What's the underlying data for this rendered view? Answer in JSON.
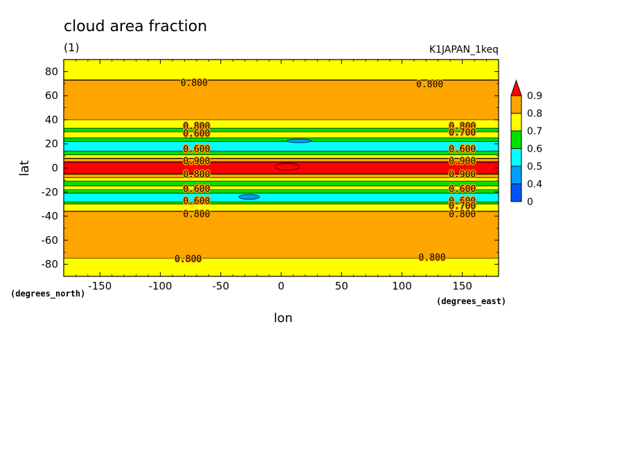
{
  "chart_data": {
    "type": "heatmap",
    "title": "cloud area fraction",
    "subtitle": "(1)",
    "experiment": "K1JAPAN_1keq",
    "xlabel": "lon",
    "ylabel": "lat",
    "xunits": "(degrees_east)",
    "yunits": "(degrees_north)",
    "xlim": [
      -180,
      180
    ],
    "ylim": [
      -90,
      90
    ],
    "xticks": [
      -150,
      -100,
      -50,
      0,
      50,
      100,
      150
    ],
    "yticks": [
      -80,
      -60,
      -40,
      -20,
      0,
      20,
      40,
      60,
      80
    ],
    "colorbar": {
      "levels": [
        "0",
        "0.4",
        "0.5",
        "0.6",
        "0.7",
        "0.8",
        "0.9"
      ],
      "bins": [
        {
          "label": "0-0.4",
          "color": "#0055ff"
        },
        {
          "label": "0.4-0.5",
          "color": "#00a0ff"
        },
        {
          "label": "0.5-0.6",
          "color": "#00ffff"
        },
        {
          "label": "0.6-0.7",
          "color": "#00e000"
        },
        {
          "label": "0.7-0.8",
          "color": "#ffff00"
        },
        {
          "label": "0.8-0.9",
          "color": "#ffa500"
        },
        {
          "label": ">0.9",
          "color": "#ff0000"
        }
      ]
    },
    "bands": [
      {
        "lat_min": 73,
        "lat_max": 90,
        "value": 0.75
      },
      {
        "lat_min": 40,
        "lat_max": 73,
        "value": 0.85
      },
      {
        "lat_min": 33,
        "lat_max": 40,
        "value": 0.75
      },
      {
        "lat_min": 30,
        "lat_max": 33,
        "value": 0.65
      },
      {
        "lat_min": 25,
        "lat_max": 30,
        "value": 0.75
      },
      {
        "lat_min": 22,
        "lat_max": 25,
        "value": 0.65
      },
      {
        "lat_min": 14,
        "lat_max": 22,
        "value": 0.55
      },
      {
        "lat_min": 11,
        "lat_max": 14,
        "value": 0.65
      },
      {
        "lat_min": 8,
        "lat_max": 11,
        "value": 0.75
      },
      {
        "lat_min": 5,
        "lat_max": 8,
        "value": 0.85
      },
      {
        "lat_min": -5,
        "lat_max": 5,
        "value": 0.95
      },
      {
        "lat_min": -8,
        "lat_max": -5,
        "value": 0.85
      },
      {
        "lat_min": -11,
        "lat_max": -8,
        "value": 0.75
      },
      {
        "lat_min": -15,
        "lat_max": -11,
        "value": 0.65
      },
      {
        "lat_min": -18,
        "lat_max": -15,
        "value": 0.75
      },
      {
        "lat_min": -21,
        "lat_max": -18,
        "value": 0.65
      },
      {
        "lat_min": -28,
        "lat_max": -21,
        "value": 0.55
      },
      {
        "lat_min": -30,
        "lat_max": -28,
        "value": 0.65
      },
      {
        "lat_min": -36,
        "lat_max": -30,
        "value": 0.75
      },
      {
        "lat_min": -75,
        "lat_max": -36,
        "value": 0.85
      },
      {
        "lat_min": -90,
        "lat_max": -75,
        "value": 0.75
      }
    ],
    "patches": [
      {
        "lon_min": -35,
        "lon_max": -18,
        "lat_min": -26,
        "lat_max": -22,
        "value": 0.45
      },
      {
        "lon_min": 5,
        "lon_max": 25,
        "lat_min": 21,
        "lat_max": 24,
        "value": 0.45
      },
      {
        "lon_min": -5,
        "lon_max": 15,
        "lat_min": -2,
        "lat_max": 4,
        "value": 0.95
      }
    ],
    "contour_labels": [
      {
        "text": "0.800",
        "lon": -72,
        "lat": 71
      },
      {
        "text": "0.800",
        "lon": 123,
        "lat": 70
      },
      {
        "text": "0.800",
        "lon": -70,
        "lat": 35
      },
      {
        "text": "0.600",
        "lon": -70,
        "lat": 29
      },
      {
        "text": "0.600",
        "lon": -70,
        "lat": 16
      },
      {
        "text": "0.900",
        "lon": -70,
        "lat": 6
      },
      {
        "text": "0.800",
        "lon": -70,
        "lat": -5
      },
      {
        "text": "0.600",
        "lon": -70,
        "lat": -17
      },
      {
        "text": "0.600",
        "lon": -70,
        "lat": -27
      },
      {
        "text": "0.800",
        "lon": -70,
        "lat": -38
      },
      {
        "text": "0.800",
        "lon": 150,
        "lat": 35
      },
      {
        "text": "0.700",
        "lon": 150,
        "lat": 30
      },
      {
        "text": "0.600",
        "lon": 150,
        "lat": 16
      },
      {
        "text": "0.900",
        "lon": 150,
        "lat": 6
      },
      {
        "text": "0.900",
        "lon": 150,
        "lat": -5
      },
      {
        "text": "0.600",
        "lon": 150,
        "lat": -17
      },
      {
        "text": "0.600",
        "lon": 150,
        "lat": -27
      },
      {
        "text": "0.700",
        "lon": 150,
        "lat": -31
      },
      {
        "text": "0.800",
        "lon": 150,
        "lat": -38
      },
      {
        "text": "0.800",
        "lon": -77,
        "lat": -75
      },
      {
        "text": "0.800",
        "lon": 125,
        "lat": -74
      }
    ]
  }
}
